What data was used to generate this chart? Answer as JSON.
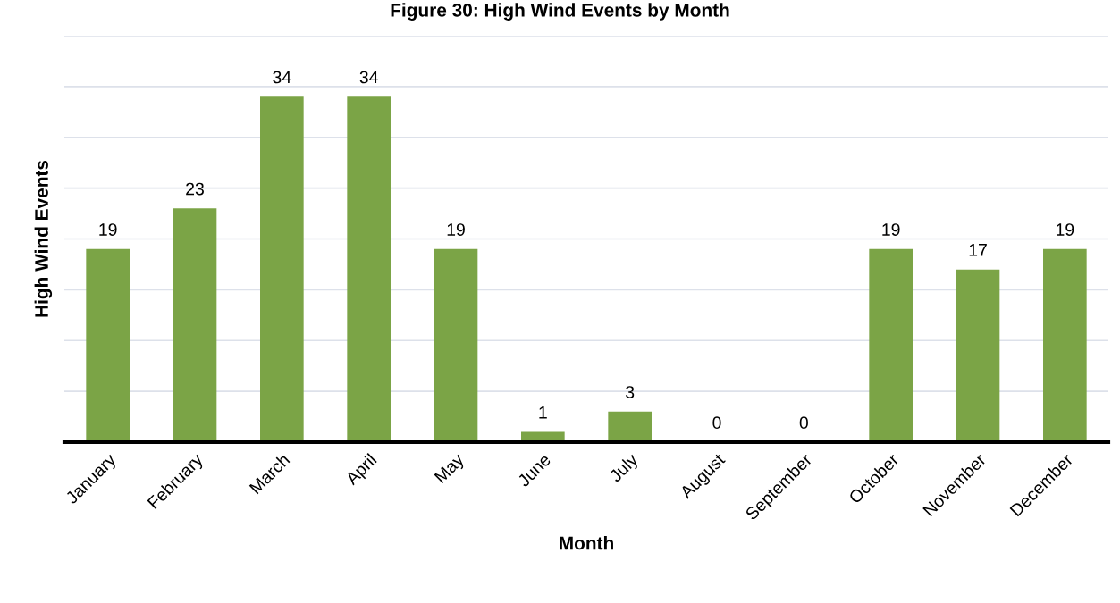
{
  "chart_data": {
    "type": "bar",
    "title": "Figure 30: High Wind Events by Month",
    "xlabel": "Month",
    "ylabel": "High Wind Events",
    "categories": [
      "January",
      "February",
      "March",
      "April",
      "May",
      "June",
      "July",
      "August",
      "September",
      "October",
      "November",
      "December"
    ],
    "values": [
      19,
      23,
      34,
      34,
      19,
      1,
      3,
      0,
      0,
      19,
      17,
      19
    ],
    "color": "#7ba446",
    "ylim": [
      0,
      40
    ],
    "yticks": [
      {
        "value": 0,
        "label": null
      },
      {
        "value": 5,
        "label": null
      },
      {
        "value": 10,
        "label": null
      },
      {
        "value": 15,
        "label": null
      },
      {
        "value": 20,
        "label": null
      },
      {
        "value": 25,
        "label": null
      },
      {
        "value": 30,
        "label": null
      },
      {
        "value": 35,
        "label": null
      },
      {
        "value": 40,
        "label": null
      }
    ],
    "grid": "y",
    "data_labels": true,
    "tick_labels": "x"
  }
}
